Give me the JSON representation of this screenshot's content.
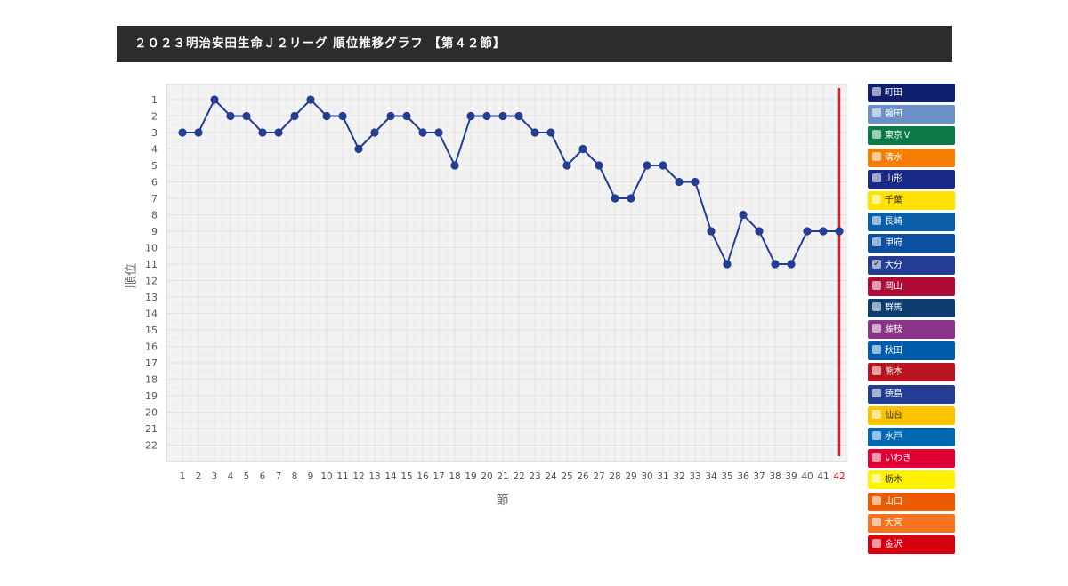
{
  "header": {
    "title": "２０２３明治安田生命Ｊ２リーグ 順位推移グラフ 【第４２節】"
  },
  "chart_data": {
    "type": "line",
    "title": "",
    "xlabel": "節",
    "ylabel": "順位",
    "x": [
      1,
      2,
      3,
      4,
      5,
      6,
      7,
      8,
      9,
      10,
      11,
      12,
      13,
      14,
      15,
      16,
      17,
      18,
      19,
      20,
      21,
      22,
      23,
      24,
      25,
      26,
      27,
      28,
      29,
      30,
      31,
      32,
      33,
      34,
      35,
      36,
      37,
      38,
      39,
      40,
      41,
      42
    ],
    "y_ticks": [
      1,
      2,
      3,
      4,
      5,
      6,
      7,
      8,
      9,
      10,
      11,
      12,
      13,
      14,
      15,
      16,
      17,
      18,
      19,
      20,
      21,
      22
    ],
    "ylim": [
      22,
      1
    ],
    "y_inverted": true,
    "grid": true,
    "current_round": 42,
    "current_round_color": "#e5171d",
    "series": [
      {
        "name": "大分",
        "color": "#233d93",
        "values": [
          3,
          3,
          1,
          2,
          2,
          3,
          3,
          2,
          1,
          2,
          2,
          4,
          3,
          2,
          2,
          3,
          3,
          5,
          2,
          2,
          2,
          2,
          3,
          3,
          5,
          4,
          5,
          7,
          7,
          5,
          5,
          6,
          6,
          9,
          11,
          8,
          9,
          11,
          11,
          9,
          9,
          9
        ]
      }
    ]
  },
  "legend": {
    "items": [
      {
        "label": "町田",
        "color": "#0e1f6e",
        "checked": false,
        "light": false
      },
      {
        "label": "磐田",
        "color": "#6b8fc6",
        "checked": false,
        "light": false
      },
      {
        "label": "東京Ｖ",
        "color": "#0b7a47",
        "checked": false,
        "light": false
      },
      {
        "label": "清水",
        "color": "#f57e00",
        "checked": false,
        "light": false
      },
      {
        "label": "山形",
        "color": "#1a2a88",
        "checked": false,
        "light": false
      },
      {
        "label": "千葉",
        "color": "#ffe100",
        "checked": false,
        "light": true
      },
      {
        "label": "長崎",
        "color": "#0a5fa8",
        "checked": false,
        "light": false
      },
      {
        "label": "甲府",
        "color": "#0c4fa0",
        "checked": false,
        "light": false
      },
      {
        "label": "大分",
        "color": "#233d93",
        "checked": true,
        "light": false
      },
      {
        "label": "岡山",
        "color": "#b00a36",
        "checked": false,
        "light": false
      },
      {
        "label": "群馬",
        "color": "#0c3d6e",
        "checked": false,
        "light": false
      },
      {
        "label": "藤枝",
        "color": "#8a3587",
        "checked": false,
        "light": false
      },
      {
        "label": "秋田",
        "color": "#005bac",
        "checked": false,
        "light": false
      },
      {
        "label": "熊本",
        "color": "#b8141f",
        "checked": false,
        "light": false
      },
      {
        "label": "徳島",
        "color": "#233d93",
        "checked": false,
        "light": false
      },
      {
        "label": "仙台",
        "color": "#fdc300",
        "checked": false,
        "light": true
      },
      {
        "label": "水戸",
        "color": "#0068b2",
        "checked": false,
        "light": false
      },
      {
        "label": "いわき",
        "color": "#e10036",
        "checked": false,
        "light": false
      },
      {
        "label": "栃木",
        "color": "#fff100",
        "checked": false,
        "light": true
      },
      {
        "label": "山口",
        "color": "#eb5b00",
        "checked": false,
        "light": false
      },
      {
        "label": "大宮",
        "color": "#f47320",
        "checked": false,
        "light": false
      },
      {
        "label": "金沢",
        "color": "#d7000f",
        "checked": false,
        "light": false
      }
    ]
  }
}
